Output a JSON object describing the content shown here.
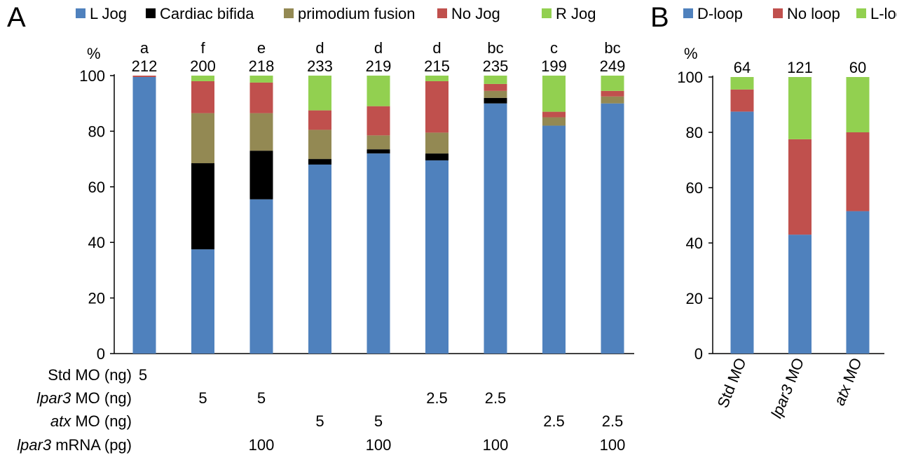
{
  "colors": {
    "blue": "#4f81bd",
    "black": "#000000",
    "olive": "#938953",
    "red": "#c0504d",
    "green": "#92d050"
  },
  "panelA": {
    "letter": "A",
    "percent_label": "%",
    "condition_rows": [
      {
        "label_italic": "",
        "label_rest": "Std MO (ng)",
        "values": [
          "5",
          "",
          "",
          "",
          "",
          "",
          "",
          "",
          ""
        ]
      },
      {
        "label_italic": "lpar3",
        "label_rest": " MO (ng)",
        "values": [
          "",
          "5",
          "5",
          "",
          "",
          "2.5",
          "2.5",
          "",
          ""
        ]
      },
      {
        "label_italic": "atx",
        "label_rest": " MO (ng)",
        "values": [
          "",
          "",
          "",
          "5",
          "5",
          "",
          "",
          "2.5",
          "2.5"
        ]
      },
      {
        "label_italic": "lpar3",
        "label_rest": " mRNA (pg)",
        "values": [
          "",
          "",
          "100",
          "",
          "100",
          "",
          "100",
          "",
          "100"
        ]
      }
    ]
  },
  "panelB": {
    "letter": "B",
    "percent_label": "%"
  },
  "chart_data": [
    {
      "type": "bar",
      "stacked": true,
      "ylim": [
        0,
        100
      ],
      "yticks": [
        0,
        20,
        40,
        60,
        80,
        100
      ],
      "legend_position": "top",
      "letters": [
        "a",
        "f",
        "e",
        "d",
        "d",
        "d",
        "bc",
        "c",
        "bc"
      ],
      "n": [
        "212",
        "200",
        "218",
        "233",
        "219",
        "215",
        "235",
        "199",
        "249"
      ],
      "series": [
        {
          "name": "L Jog",
          "color": "#4f81bd",
          "values": [
            99.5,
            37.5,
            55.5,
            68,
            72,
            69.5,
            90,
            82,
            90
          ]
        },
        {
          "name": "Cardiac bifida",
          "color": "#000000",
          "values": [
            0,
            31,
            17.5,
            2,
            1.5,
            2.5,
            2,
            0,
            0
          ]
        },
        {
          "name": "primodium fusion",
          "color": "#938953",
          "values": [
            0,
            18,
            13.5,
            10.5,
            5,
            7.5,
            2.5,
            3,
            2.5
          ]
        },
        {
          "name": "No Jog",
          "color": "#c0504d",
          "values": [
            0.5,
            11.5,
            11,
            7,
            10.5,
            18.5,
            2.5,
            2,
            2
          ]
        },
        {
          "name": "R Jog",
          "color": "#92d050",
          "values": [
            0,
            2,
            2.5,
            12.5,
            11,
            2,
            3,
            13,
            5.5
          ]
        }
      ]
    },
    {
      "type": "bar",
      "stacked": true,
      "ylim": [
        0,
        100
      ],
      "yticks": [
        0,
        20,
        40,
        60,
        80,
        100
      ],
      "legend_position": "top",
      "categories": [
        "Std MO",
        "lpar3 MO",
        "atx MO"
      ],
      "category_parts": [
        {
          "italic": "",
          "rest": "Std MO"
        },
        {
          "italic": "lpar3",
          "rest": " MO"
        },
        {
          "italic": "atx",
          "rest": " MO"
        }
      ],
      "n": [
        "64",
        "121",
        "60"
      ],
      "series": [
        {
          "name": "D-loop",
          "color": "#4f81bd",
          "values": [
            87.5,
            43,
            51.5
          ]
        },
        {
          "name": "No loop",
          "color": "#c0504d",
          "values": [
            8,
            34.5,
            28.5
          ]
        },
        {
          "name": "L-loop",
          "color": "#92d050",
          "values": [
            4.5,
            22.5,
            20
          ]
        }
      ]
    }
  ]
}
